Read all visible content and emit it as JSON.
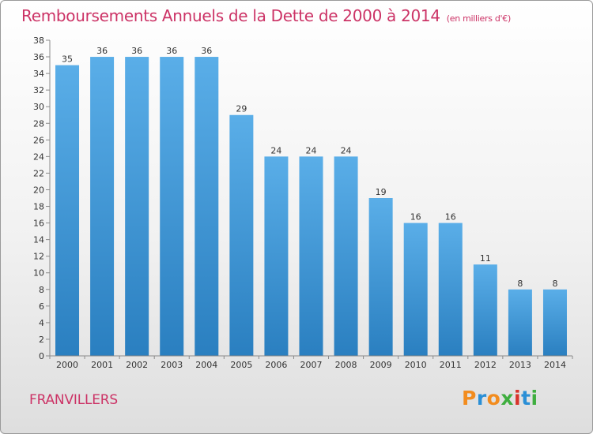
{
  "header": {
    "title": "Remboursements Annuels de la Dette de 2000 à 2014",
    "subtitle": "(en milliers d'€)"
  },
  "footer": {
    "commune": "FRANVILLERS",
    "logo_text": "Proxiti",
    "logo_colors": [
      "#f28c1e",
      "#2a8fd6",
      "#f28c1e",
      "#3fae3f",
      "#d8342c",
      "#2a8fd6",
      "#3fae3f"
    ]
  },
  "chart_data": {
    "type": "bar",
    "categories": [
      "2000",
      "2001",
      "2002",
      "2003",
      "2004",
      "2005",
      "2006",
      "2007",
      "2008",
      "2009",
      "2010",
      "2011",
      "2012",
      "2013",
      "2014"
    ],
    "values": [
      35,
      36,
      36,
      36,
      36,
      29,
      24,
      24,
      24,
      19,
      16,
      16,
      11,
      8,
      8
    ],
    "title": "Remboursements Annuels de la Dette de 2000 à 2014",
    "xlabel": "",
    "ylabel": "",
    "ylim": [
      0,
      38
    ],
    "ytick_step": 2,
    "grid": false,
    "bar_color_top": "#5aaee8",
    "bar_color_bottom": "#2a7fc0"
  }
}
